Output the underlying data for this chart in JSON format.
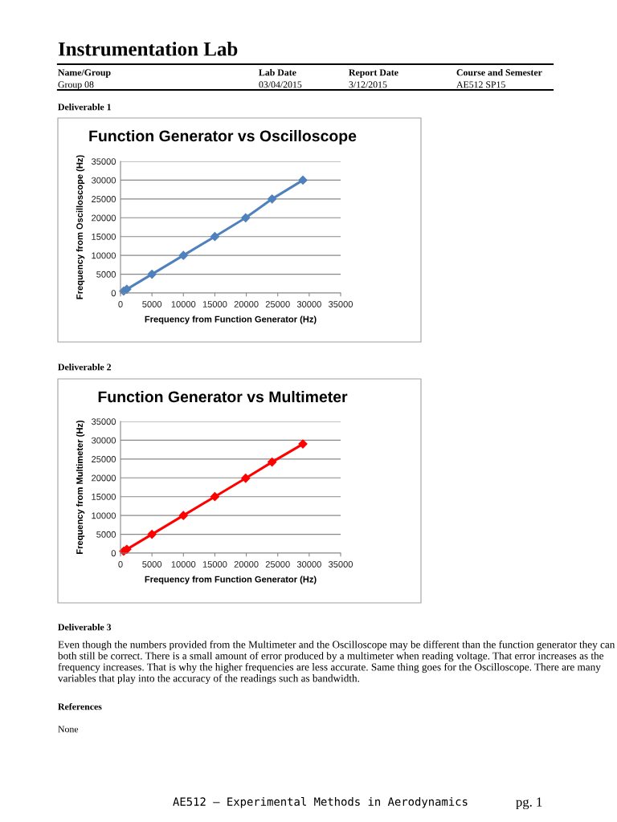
{
  "chart_data": [
    {
      "type": "line",
      "title": "Function Generator vs Oscilloscope",
      "xlabel": "Frequency from Function Generator (Hz)",
      "ylabel": "Frequency from Oscilloscope (Hz)",
      "x": [
        500,
        1000,
        5000,
        10000,
        15000,
        19900,
        24100,
        29000
      ],
      "series": [
        {
          "color": "#4f81bd",
          "values": [
            500,
            1000,
            5000,
            10000,
            15000,
            20000,
            25000,
            30000
          ]
        }
      ],
      "xlim": [
        0,
        35000
      ],
      "xticks": [
        0,
        5000,
        10000,
        15000,
        20000,
        25000,
        30000,
        35000
      ],
      "ylim": [
        0,
        35000
      ],
      "yticks": [
        0,
        5000,
        10000,
        15000,
        20000,
        25000,
        30000,
        35000
      ],
      "grid": "y",
      "marker": "diamond",
      "line_style": "solid",
      "annotations": [
        "Instrumentation Lab",
        "Name/Group",
        "Lab Date",
        "Report Date",
        "Course and Semester",
        "Group 08",
        "03/04/2015",
        "3/12/2015",
        "AE512 SP15",
        "Deliverable 1"
      ]
    },
    {
      "type": "line",
      "title": "Function Generator vs Multimeter",
      "xlabel": "Frequency from Function Generator (Hz)",
      "ylabel": "Frequency from Multimeter (Hz)",
      "x": [
        500,
        1000,
        5000,
        10000,
        15000,
        19900,
        24100,
        29000
      ],
      "series": [
        {
          "color": "#ff0000",
          "values": [
            500,
            1000,
            5000,
            10000,
            15000,
            19900,
            24200,
            29000
          ]
        }
      ],
      "xlim": [
        0,
        35000
      ],
      "xticks": [
        0,
        5000,
        10000,
        15000,
        20000,
        25000,
        30000,
        35000
      ],
      "ylim": [
        0,
        35000
      ],
      "yticks": [
        0,
        5000,
        10000,
        15000,
        20000,
        25000,
        30000,
        35000
      ],
      "grid": "y",
      "marker": "diamond",
      "line_style": "solid",
      "annotations": [
        "Deliverable 2",
        "Deliverable 3",
        "Even though the numbers provided from the Multimeter and the Oscilloscope may be different than the function generator they can both still be correct. There is a small amount of error produced by a multimeter when reading voltage. That error increases as the frequency increases. That is why the higher frequencies are less accurate. Same thing goes for the Oscilloscope. There are many variables that play into the accuracy of the readings such as bandwidth.",
        "References",
        "None",
        "AE512 – Experimental Methods in Aerodynamics",
        "pg. 1"
      ]
    }
  ]
}
